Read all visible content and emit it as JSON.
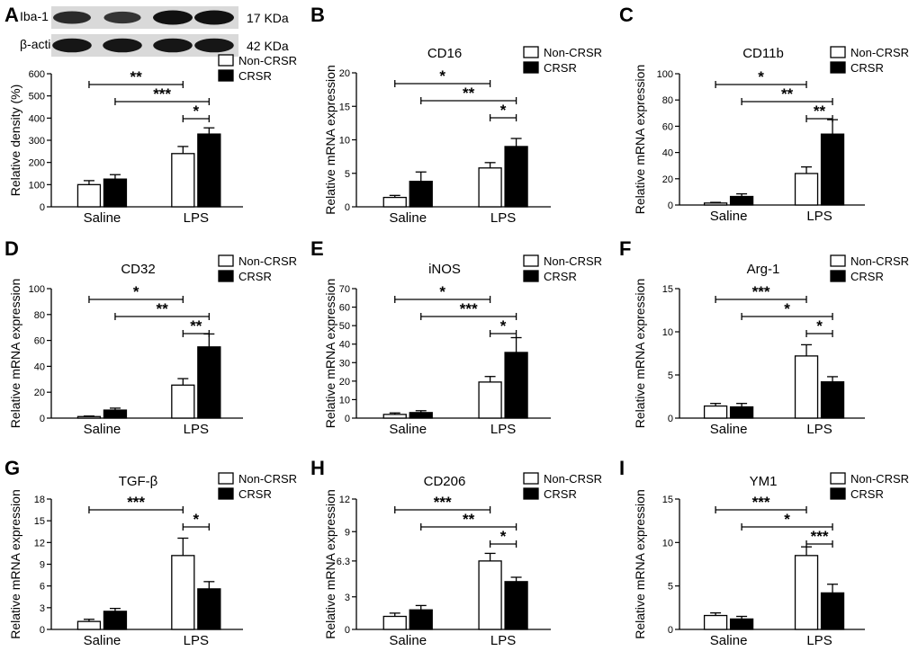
{
  "colors": {
    "series_open": "#ffffff",
    "series_filled": "#000000",
    "blot_bg": "#d9d9d9",
    "band": "#111111"
  },
  "blot": {
    "rows": [
      {
        "name": "Iba-1",
        "kda": "17 KDa",
        "intensity": [
          0.75,
          0.65,
          1.0,
          1.0
        ]
      },
      {
        "name": "β-actin",
        "kda": "42 KDa",
        "intensity": [
          0.95,
          0.95,
          0.95,
          0.95
        ]
      }
    ]
  },
  "chart_data": [
    {
      "panel": "A",
      "type": "bar",
      "title": "",
      "ylabel": "Relative density (%)",
      "categories": [
        "Saline",
        "LPS"
      ],
      "ylim": [
        0,
        600
      ],
      "yticks": [
        0,
        100,
        200,
        300,
        400,
        500,
        600
      ],
      "legend": "top-right",
      "series": [
        {
          "name": "Non-CRSR",
          "values": [
            100,
            240
          ],
          "errors": [
            18,
            32
          ]
        },
        {
          "name": "CRSR",
          "values": [
            125,
            328
          ],
          "errors": [
            20,
            28
          ]
        }
      ],
      "significance": [
        {
          "from": [
            0,
            0
          ],
          "to": [
            1,
            0
          ],
          "label": "**"
        },
        {
          "from": [
            0,
            1
          ],
          "to": [
            1,
            1
          ],
          "label": "***"
        },
        {
          "from": [
            1,
            0
          ],
          "to": [
            1,
            1
          ],
          "label": "*"
        }
      ]
    },
    {
      "panel": "B",
      "type": "bar",
      "title": "CD16",
      "ylabel": "Relative mRNA expression",
      "categories": [
        "Saline",
        "LPS"
      ],
      "ylim": [
        0,
        20
      ],
      "yticks": [
        0,
        5,
        10,
        15,
        20
      ],
      "legend": "top-right",
      "series": [
        {
          "name": "Non-CRSR",
          "values": [
            1.4,
            5.8
          ],
          "errors": [
            0.3,
            0.8
          ]
        },
        {
          "name": "CRSR",
          "values": [
            3.8,
            9.0
          ],
          "errors": [
            1.4,
            1.2
          ]
        }
      ],
      "significance": [
        {
          "from": [
            0,
            0
          ],
          "to": [
            1,
            0
          ],
          "label": "*"
        },
        {
          "from": [
            0,
            1
          ],
          "to": [
            1,
            1
          ],
          "label": "**"
        },
        {
          "from": [
            1,
            0
          ],
          "to": [
            1,
            1
          ],
          "label": "*"
        }
      ]
    },
    {
      "panel": "C",
      "type": "bar",
      "title": "CD11b",
      "ylabel": "Relative mRNA expression",
      "categories": [
        "Saline",
        "LPS"
      ],
      "ylim": [
        0,
        100
      ],
      "yticks": [
        0,
        20,
        40,
        60,
        80,
        100
      ],
      "legend": "top-right",
      "series": [
        {
          "name": "Non-CRSR",
          "values": [
            1.5,
            24
          ],
          "errors": [
            0.5,
            5
          ]
        },
        {
          "name": "CRSR",
          "values": [
            6.5,
            54
          ],
          "errors": [
            2,
            11
          ]
        }
      ],
      "significance": [
        {
          "from": [
            0,
            0
          ],
          "to": [
            1,
            0
          ],
          "label": "*"
        },
        {
          "from": [
            0,
            1
          ],
          "to": [
            1,
            1
          ],
          "label": "**"
        },
        {
          "from": [
            1,
            0
          ],
          "to": [
            1,
            1
          ],
          "label": "**"
        }
      ]
    },
    {
      "panel": "D",
      "type": "bar",
      "title": "CD32",
      "ylabel": "Relative mRNA expression",
      "categories": [
        "Saline",
        "LPS"
      ],
      "ylim": [
        0,
        100
      ],
      "yticks": [
        0,
        20,
        40,
        60,
        80,
        100
      ],
      "legend": "top-right",
      "series": [
        {
          "name": "Non-CRSR",
          "values": [
            1.2,
            25.5
          ],
          "errors": [
            0.4,
            5
          ]
        },
        {
          "name": "CRSR",
          "values": [
            6.2,
            55
          ],
          "errors": [
            1.5,
            10
          ]
        }
      ],
      "significance": [
        {
          "from": [
            0,
            0
          ],
          "to": [
            1,
            0
          ],
          "label": "*"
        },
        {
          "from": [
            0,
            1
          ],
          "to": [
            1,
            1
          ],
          "label": "**"
        },
        {
          "from": [
            1,
            0
          ],
          "to": [
            1,
            1
          ],
          "label": "**"
        }
      ]
    },
    {
      "panel": "E",
      "type": "bar",
      "title": "iNOS",
      "ylabel": "Relative mRNA expression",
      "categories": [
        "Saline",
        "LPS"
      ],
      "ylim": [
        0,
        70
      ],
      "yticks": [
        0,
        10,
        20,
        30,
        40,
        50,
        60,
        70
      ],
      "legend": "top-right",
      "series": [
        {
          "name": "Non-CRSR",
          "values": [
            2,
            19.5
          ],
          "errors": [
            0.8,
            3
          ]
        },
        {
          "name": "CRSR",
          "values": [
            3,
            35.5
          ],
          "errors": [
            1,
            8
          ]
        }
      ],
      "significance": [
        {
          "from": [
            0,
            0
          ],
          "to": [
            1,
            0
          ],
          "label": "*"
        },
        {
          "from": [
            0,
            1
          ],
          "to": [
            1,
            1
          ],
          "label": "***"
        },
        {
          "from": [
            1,
            0
          ],
          "to": [
            1,
            1
          ],
          "label": "*"
        }
      ]
    },
    {
      "panel": "F",
      "type": "bar",
      "title": "Arg-1",
      "ylabel": "Relative mRNA expression",
      "categories": [
        "Saline",
        "LPS"
      ],
      "ylim": [
        0,
        15
      ],
      "yticks": [
        0,
        5,
        10,
        15
      ],
      "legend": "top-right",
      "series": [
        {
          "name": "Non-CRSR",
          "values": [
            1.4,
            7.2
          ],
          "errors": [
            0.3,
            1.3
          ]
        },
        {
          "name": "CRSR",
          "values": [
            1.3,
            4.2
          ],
          "errors": [
            0.4,
            0.6
          ]
        }
      ],
      "significance": [
        {
          "from": [
            0,
            0
          ],
          "to": [
            1,
            0
          ],
          "label": "***"
        },
        {
          "from": [
            0,
            1
          ],
          "to": [
            1,
            1
          ],
          "label": "*"
        },
        {
          "from": [
            1,
            0
          ],
          "to": [
            1,
            1
          ],
          "label": "*"
        }
      ]
    },
    {
      "panel": "G",
      "type": "bar",
      "title": "TGF-β",
      "ylabel": "Relative mRNA expression",
      "categories": [
        "Saline",
        "LPS"
      ],
      "ylim": [
        0,
        18
      ],
      "yticks": [
        0,
        3,
        6,
        9,
        12,
        15,
        18
      ],
      "legend": "top-right",
      "series": [
        {
          "name": "Non-CRSR",
          "values": [
            1.1,
            10.2
          ],
          "errors": [
            0.3,
            2.4
          ]
        },
        {
          "name": "CRSR",
          "values": [
            2.5,
            5.6
          ],
          "errors": [
            0.4,
            1.0
          ]
        }
      ],
      "significance": [
        {
          "from": [
            0,
            0
          ],
          "to": [
            1,
            0
          ],
          "label": "***"
        },
        {
          "from": [
            1,
            0
          ],
          "to": [
            1,
            1
          ],
          "label": "*"
        }
      ]
    },
    {
      "panel": "H",
      "type": "bar",
      "title": "CD206",
      "ylabel": "Relative mRNA expression",
      "categories": [
        "Saline",
        "LPS"
      ],
      "ylim": [
        0,
        12
      ],
      "yticks": [
        0,
        3,
        6.3,
        9,
        12
      ],
      "ytick_labels": [
        "0",
        "3",
        "6.3",
        "9",
        "12"
      ],
      "legend": "top-right",
      "series": [
        {
          "name": "Non-CRSR",
          "values": [
            1.2,
            6.3
          ],
          "errors": [
            0.3,
            0.7
          ]
        },
        {
          "name": "CRSR",
          "values": [
            1.8,
            4.4
          ],
          "errors": [
            0.4,
            0.4
          ]
        }
      ],
      "significance": [
        {
          "from": [
            0,
            0
          ],
          "to": [
            1,
            0
          ],
          "label": "***"
        },
        {
          "from": [
            0,
            1
          ],
          "to": [
            1,
            1
          ],
          "label": "**"
        },
        {
          "from": [
            1,
            0
          ],
          "to": [
            1,
            1
          ],
          "label": "*"
        }
      ]
    },
    {
      "panel": "I",
      "type": "bar",
      "title": "YM1",
      "ylabel": "Relative mRNA expression",
      "categories": [
        "Saline",
        "LPS"
      ],
      "ylim": [
        0,
        15
      ],
      "yticks": [
        0,
        5,
        10,
        15
      ],
      "legend": "top-right",
      "series": [
        {
          "name": "Non-CRSR",
          "values": [
            1.6,
            8.5
          ],
          "errors": [
            0.3,
            1.0
          ]
        },
        {
          "name": "CRSR",
          "values": [
            1.2,
            4.2
          ],
          "errors": [
            0.3,
            1.0
          ]
        }
      ],
      "significance": [
        {
          "from": [
            0,
            0
          ],
          "to": [
            1,
            0
          ],
          "label": "***"
        },
        {
          "from": [
            0,
            1
          ],
          "to": [
            1,
            1
          ],
          "label": "*"
        },
        {
          "from": [
            1,
            0
          ],
          "to": [
            1,
            1
          ],
          "label": "***"
        }
      ]
    }
  ]
}
